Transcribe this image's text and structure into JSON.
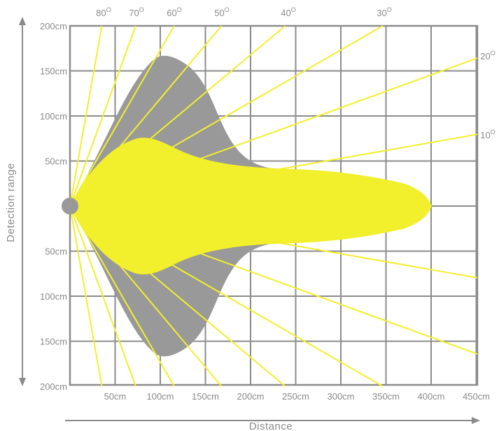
{
  "x_axis": {
    "title": "Distance",
    "ticks": [
      "50cm",
      "100cm",
      "150cm",
      "200cm",
      "250cm",
      "300cm",
      "350cm",
      "400cm",
      "450cm"
    ]
  },
  "y_axis": {
    "title": "Detection range",
    "upper_ticks": [
      "200cm",
      "150cm",
      "100cm",
      "50cm"
    ],
    "lower_ticks": [
      "50cm",
      "100cm",
      "150cm",
      "200cm"
    ]
  },
  "angle_labels": [
    {
      "label": "80",
      "unit": "O"
    },
    {
      "label": "70",
      "unit": "O"
    },
    {
      "label": "60",
      "unit": "O"
    },
    {
      "label": "50",
      "unit": "O"
    },
    {
      "label": "40",
      "unit": "O"
    },
    {
      "label": "30",
      "unit": "O"
    },
    {
      "label": "20",
      "unit": "O"
    },
    {
      "label": "10",
      "unit": "O"
    }
  ],
  "colors": {
    "grid": "#8c8c8c",
    "outer_zone": "#999999",
    "inner_zone": "#f2ef2c",
    "rays": "#f2ef2c",
    "sensor": "#999999",
    "text": "#8a8a8a"
  }
}
